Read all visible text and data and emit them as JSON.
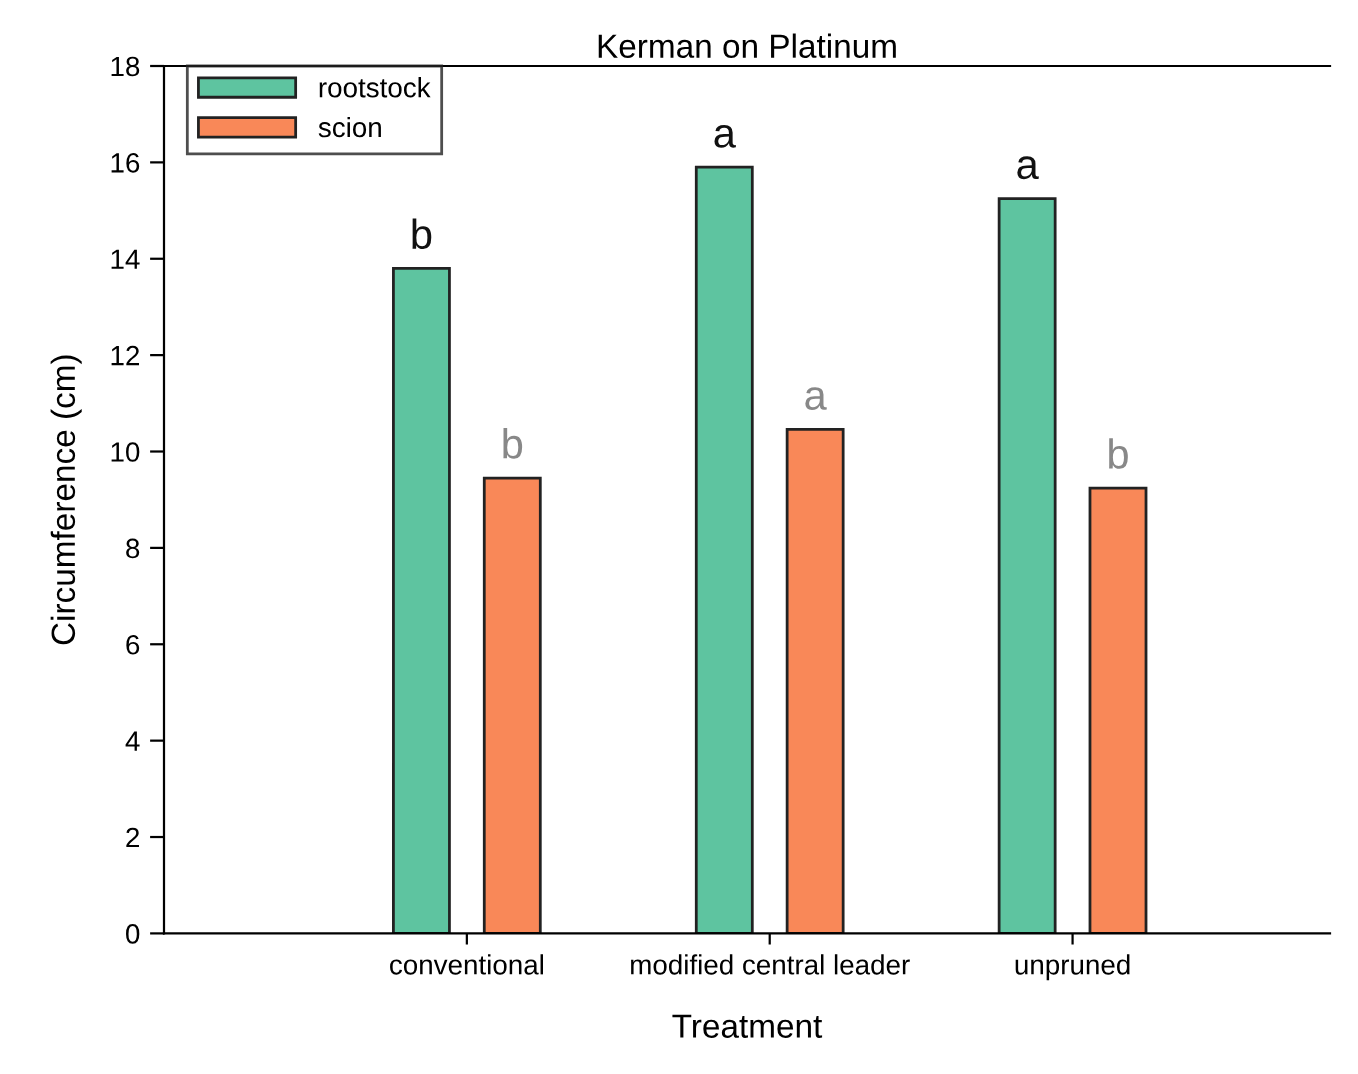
{
  "chart_data": {
    "type": "bar",
    "title": "Kerman on Platinum",
    "xlabel": "Treatment",
    "ylabel": "Circumference (cm)",
    "categories": [
      "conventional",
      "modified central leader",
      "unpruned"
    ],
    "series": [
      {
        "name": "rootstock",
        "color": "#5ec4a0",
        "values": [
          13.8,
          15.9,
          15.25
        ]
      },
      {
        "name": "scion",
        "color": "#f98858",
        "values": [
          9.45,
          10.46,
          9.24
        ]
      }
    ],
    "ylim": [
      0,
      18
    ],
    "yticks": [
      0,
      2,
      4,
      6,
      8,
      10,
      12,
      14,
      16,
      18
    ],
    "grid": false,
    "legend": "top left",
    "annotations": [
      "b",
      "b",
      "a",
      "a",
      "a",
      "b"
    ]
  }
}
